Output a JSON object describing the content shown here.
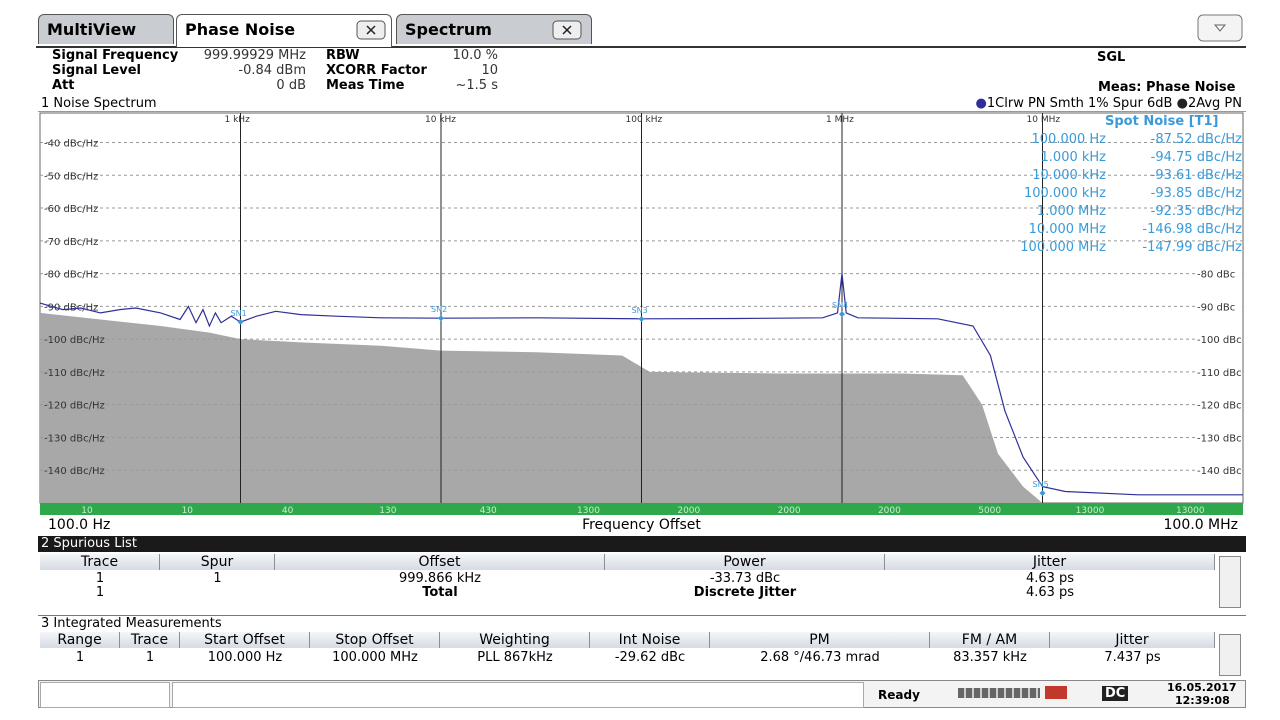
{
  "tabs": [
    "MultiView",
    "Phase Noise",
    "Spectrum"
  ],
  "header": {
    "left": [
      [
        "Signal Frequency",
        "999.99929 MHz"
      ],
      [
        "Signal Level",
        "-0.84 dBm"
      ],
      [
        "Att",
        "0 dB"
      ]
    ],
    "middle": [
      [
        "RBW",
        "10.0 %"
      ],
      [
        "XCORR Factor",
        "10"
      ],
      [
        "Meas Time",
        "~1.5 s"
      ]
    ],
    "mode": "SGL",
    "measurement": "Meas: Phase Noise"
  },
  "plot": {
    "title": "1 Noise Spectrum",
    "xlog": true,
    "xlim": [
      100,
      100000000
    ],
    "xticks": [
      {
        "value": 1000,
        "label": "1 kHz"
      },
      {
        "value": 10000,
        "label": "10 kHz"
      },
      {
        "value": 100000,
        "label": "100 kHz"
      },
      {
        "value": 1000000,
        "label": "1 MHz"
      },
      {
        "value": 10000000,
        "label": "10 MHz"
      }
    ],
    "ylim": [
      -150,
      -31
    ],
    "yticks": [
      {
        "value": -40,
        "label": "-40 dBc/Hz"
      },
      {
        "value": -50,
        "label": "-50 dBc/Hz"
      },
      {
        "value": -60,
        "label": "-60 dBc/Hz"
      },
      {
        "value": -70,
        "label": "-70 dBc/Hz"
      },
      {
        "value": -80,
        "label": "-80 dBc/Hz"
      },
      {
        "value": -90,
        "label": "-90 dBc/Hz"
      },
      {
        "value": -100,
        "label": "-100 dBc/Hz"
      },
      {
        "value": -110,
        "label": "-110 dBc/Hz"
      },
      {
        "value": -120,
        "label": "-120 dBc/Hz"
      },
      {
        "value": -130,
        "label": "-130 dBc/Hz"
      },
      {
        "value": -140,
        "label": "-140 dBc/Hz"
      }
    ],
    "yticks_right": [
      {
        "value": -80,
        "label": "-80 dBc"
      },
      {
        "value": -90,
        "label": "-90 dBc"
      },
      {
        "value": -100,
        "label": "-100 dBc"
      },
      {
        "value": -110,
        "label": "-110 dBc"
      },
      {
        "value": -120,
        "label": "-120 dBc"
      },
      {
        "value": -130,
        "label": "-130 dBc"
      },
      {
        "value": -140,
        "label": "-140 dBc"
      }
    ],
    "grid": true,
    "series": [
      {
        "name": "1Clrw PN Smth 1% Spur 6dB",
        "color": "#2f2f9a",
        "style": "line",
        "x": [
          100,
          130,
          160,
          200,
          250,
          300,
          400,
          500,
          550,
          600,
          650,
          700,
          750,
          800,
          900,
          1000,
          1200,
          1500,
          2000,
          3000,
          5000,
          10000,
          30000,
          100000,
          300000,
          800000,
          950000,
          1000000,
          1050000,
          1200000,
          3000000,
          4500000,
          5500000,
          6500000,
          8000000,
          10000000,
          13000000,
          30000000,
          100000000
        ],
        "values": [
          -89,
          -91,
          -90.5,
          -92,
          -91,
          -90.5,
          -92,
          -94,
          -90,
          -95,
          -91,
          -96,
          -92,
          -95,
          -93,
          -94.8,
          -93,
          -91.5,
          -92.5,
          -93,
          -93.5,
          -93.6,
          -93.5,
          -93.8,
          -93.7,
          -93.5,
          -92,
          -80,
          -92,
          -93.5,
          -93.8,
          -96,
          -105,
          -122,
          -136,
          -145,
          -146.5,
          -147.5,
          -147.5
        ]
      },
      {
        "name": "2Avg PN",
        "color": "#a8a8a8",
        "style": "area",
        "x": [
          100,
          200,
          400,
          700,
          1000,
          2000,
          5000,
          10000,
          30000,
          80000,
          110000,
          500000,
          2000000,
          4000000,
          5000000,
          6000000,
          8000000,
          10000000,
          100000000
        ],
        "values": [
          -92,
          -94,
          -96,
          -98,
          -100,
          -101,
          -102,
          -103.5,
          -104,
          -105,
          -110,
          -110.5,
          -110.5,
          -111,
          -120,
          -135,
          -145,
          -150,
          -150
        ]
      }
    ],
    "markers": [
      {
        "label": "SN1",
        "x": 1000,
        "y": -94.75
      },
      {
        "label": "SN2",
        "x": 10000,
        "y": -93.61
      },
      {
        "label": "SN3",
        "x": 100000,
        "y": -93.85
      },
      {
        "label": "SN4",
        "x": 1000000,
        "y": -92.35
      },
      {
        "label": "SN5",
        "x": 10000000,
        "y": -146.98
      }
    ],
    "spot_noise": {
      "title": "Spot Noise [T1]",
      "rows": [
        [
          "100.000 Hz",
          "-87.52 dBc/Hz"
        ],
        [
          "1.000 kHz",
          "-94.75 dBc/Hz"
        ],
        [
          "10.000 kHz",
          "-93.61 dBc/Hz"
        ],
        [
          "100.000 kHz",
          "-93.85 dBc/Hz"
        ],
        [
          "1.000 MHz",
          "-92.35 dBc/Hz"
        ],
        [
          "10.000 MHz",
          "-146.98 dBc/Hz"
        ],
        [
          "100.000 MHz",
          "-147.99 dBc/Hz"
        ]
      ]
    },
    "rbw_bar": [
      "10",
      "10",
      "40",
      "130",
      "430",
      "1300",
      "2000",
      "2000",
      "2000",
      "5000",
      "13000",
      "13000"
    ],
    "x_start": "100.0 Hz",
    "x_label": "Frequency Offset",
    "x_stop": "100.0 MHz"
  },
  "spurious": {
    "title": "2 Spurious List",
    "headers": [
      "Trace",
      "Spur",
      "Offset",
      "Power",
      "Jitter"
    ],
    "rows": [
      {
        "trace": "1",
        "spur": "1",
        "offset": "999.866 kHz",
        "power": "-33.73 dBc",
        "jitter": "4.63 ps"
      },
      {
        "trace": "1",
        "offset": "Total",
        "power": "Discrete Jitter",
        "jitter": "4.63 ps"
      }
    ]
  },
  "integrated": {
    "title": "3 Integrated Measurements",
    "headers": [
      "Range",
      "Trace",
      "Start Offset",
      "Stop Offset",
      "Weighting",
      "Int Noise",
      "PM",
      "FM / AM",
      "Jitter"
    ],
    "rows": [
      [
        "1",
        "1",
        "100.000 Hz",
        "100.000 MHz",
        "PLL 867kHz",
        "-29.62 dBc",
        "2.68 °/46.73 mrad",
        "83.357 kHz",
        "7.437 ps"
      ]
    ]
  },
  "status": {
    "state": "Ready",
    "coupling": "DC",
    "date": "16.05.2017",
    "time": "12:39:08"
  }
}
